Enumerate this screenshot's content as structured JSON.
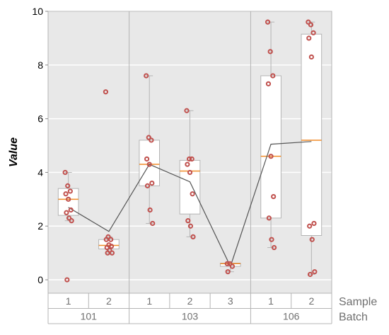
{
  "chart_data": {
    "type": "box",
    "ylabel": "Value",
    "ylim": [
      -0.5,
      10
    ],
    "yticks": [
      0,
      2,
      4,
      6,
      8,
      10
    ],
    "grid": true,
    "level_labels": {
      "sample": "Sample",
      "batch": "Batch"
    },
    "batches": [
      {
        "name": "101",
        "groups": [
          {
            "sample": "1",
            "box": {
              "whislo": 2.2,
              "q1": 2.4,
              "med": 3.0,
              "q3": 3.4,
              "whishi": 4.0
            },
            "points": [
              4.0,
              3.5,
              3.3,
              3.2,
              3.0,
              2.6,
              2.5,
              2.3,
              2.2,
              0.0
            ]
          },
          {
            "sample": "2",
            "box": {
              "whislo": 1.0,
              "q1": 1.15,
              "med": 1.28,
              "q3": 1.5,
              "whishi": 1.6
            },
            "points": [
              7.0,
              1.6,
              1.5,
              1.5,
              1.3,
              1.25,
              1.2,
              1.1,
              1.0,
              1.0
            ]
          }
        ]
      },
      {
        "name": "103",
        "groups": [
          {
            "sample": "1",
            "box": {
              "whislo": 2.1,
              "q1": 3.5,
              "med": 4.3,
              "q3": 5.2,
              "whishi": 7.6
            },
            "points": [
              7.6,
              5.3,
              5.2,
              4.5,
              4.3,
              3.6,
              3.5,
              2.6,
              2.1
            ]
          },
          {
            "sample": "2",
            "box": {
              "whislo": 1.6,
              "q1": 2.45,
              "med": 4.05,
              "q3": 4.45,
              "whishi": 6.3
            },
            "points": [
              6.3,
              4.5,
              4.5,
              4.3,
              4.0,
              3.2,
              2.2,
              2.0,
              1.6
            ]
          },
          {
            "sample": "3",
            "box": {
              "whislo": 0.3,
              "q1": 0.5,
              "med": 0.6,
              "q3": 0.62,
              "whishi": 0.62
            },
            "points": [
              0.6,
              0.6,
              0.5,
              0.3
            ]
          }
        ]
      },
      {
        "name": "106",
        "groups": [
          {
            "sample": "1",
            "box": {
              "whislo": 1.2,
              "q1": 2.3,
              "med": 4.6,
              "q3": 7.6,
              "whishi": 9.6
            },
            "points": [
              9.6,
              8.5,
              7.6,
              7.3,
              4.6,
              3.1,
              2.3,
              1.5,
              1.2
            ]
          },
          {
            "sample": "2",
            "box": {
              "whislo": 0.2,
              "q1": 1.65,
              "med": 5.2,
              "q3": 9.15,
              "whishi": 9.6
            },
            "points": [
              9.6,
              9.5,
              9.2,
              9.0,
              8.3,
              2.1,
              2.0,
              1.5,
              0.3,
              0.2
            ]
          }
        ]
      }
    ],
    "mean_line": [
      2.7,
      1.8,
      4.3,
      3.65,
      0.5,
      5.05,
      5.15
    ],
    "colors": {
      "plot_bg": "#e8e8e8",
      "box_fill": "#ffffff",
      "box_edge": "#b4b4b4",
      "median": "#f08c28",
      "point": "#c0504d",
      "mean_line": "#555555",
      "grid": "#ffffff",
      "divider": "#b4b4b4",
      "level_text": "#707070"
    }
  }
}
